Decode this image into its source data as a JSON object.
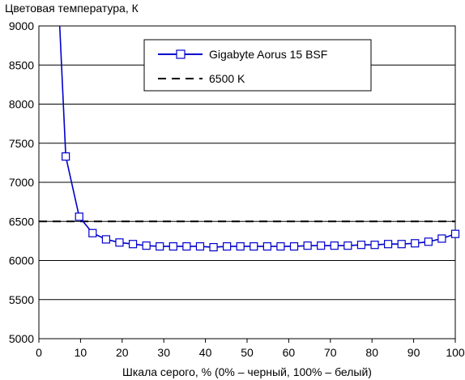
{
  "chart_data": {
    "type": "line",
    "title": "",
    "ylabel": "Цветовая температура, К",
    "xlabel": "Шкала серого, % (0% – черный, 100% – белый)",
    "xlim": [
      0,
      100
    ],
    "ylim": [
      5000,
      9000
    ],
    "xticks": [
      0,
      10,
      20,
      30,
      40,
      50,
      60,
      70,
      80,
      90,
      100
    ],
    "yticks": [
      5000,
      5500,
      6000,
      6500,
      7000,
      7500,
      8000,
      8500,
      9000
    ],
    "grid": "horizontal",
    "legend_position": "top-right",
    "series": [
      {
        "name": "Gigabyte Aorus 15 BSF",
        "color": "#0000cc",
        "marker": "square",
        "x": [
          5,
          6.45,
          9.68,
          12.9,
          16.13,
          19.35,
          22.58,
          25.81,
          29.03,
          32.26,
          35.48,
          38.71,
          41.94,
          45.16,
          48.39,
          51.61,
          54.84,
          58.06,
          61.29,
          64.52,
          67.74,
          70.97,
          74.19,
          77.42,
          80.65,
          83.87,
          87.1,
          90.32,
          93.55,
          96.77,
          100
        ],
        "y": [
          9000,
          7330,
          6560,
          6350,
          6270,
          6230,
          6210,
          6190,
          6180,
          6180,
          6180,
          6180,
          6170,
          6180,
          6180,
          6180,
          6180,
          6180,
          6180,
          6190,
          6190,
          6190,
          6190,
          6200,
          6200,
          6210,
          6210,
          6220,
          6240,
          6280,
          6340
        ],
        "marker_from_index": 1
      },
      {
        "name": "6500 K",
        "color": "#000000",
        "style": "dashed",
        "x": [
          0,
          100
        ],
        "y": [
          6500,
          6500
        ]
      }
    ]
  }
}
